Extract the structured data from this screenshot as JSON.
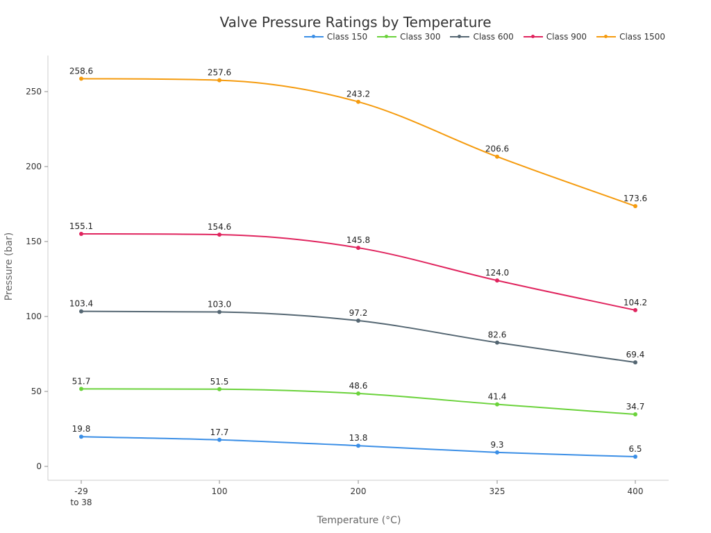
{
  "chart_data": {
    "type": "line",
    "title": "Valve Pressure Ratings by Temperature",
    "xlabel": "Temperature (°C)",
    "ylabel": "Pressure (bar)",
    "categories": [
      "-29\nto 38",
      "100",
      "200",
      "325",
      "400"
    ],
    "yticks": [
      0,
      50,
      100,
      150,
      200,
      250
    ],
    "ylim": [
      -5,
      274
    ],
    "legend_position": "top-right",
    "grid": false,
    "series": [
      {
        "name": "Class 150",
        "color": "#3a8ee6",
        "values": [
          19.8,
          17.7,
          13.8,
          9.3,
          6.5
        ],
        "labels": [
          "19.8",
          "17.7",
          "13.8",
          "9.3",
          "6.5"
        ]
      },
      {
        "name": "Class 300",
        "color": "#6ad23a",
        "values": [
          51.7,
          51.5,
          48.6,
          41.4,
          34.7
        ],
        "labels": [
          "51.7",
          "51.5",
          "48.6",
          "41.4",
          "34.7"
        ]
      },
      {
        "name": "Class 600",
        "color": "#546672",
        "values": [
          103.4,
          103.0,
          97.2,
          82.6,
          69.4
        ],
        "labels": [
          "103.4",
          "103.0",
          "97.2",
          "82.6",
          "69.4"
        ]
      },
      {
        "name": "Class 900",
        "color": "#e0245e",
        "values": [
          155.1,
          154.6,
          145.8,
          124.0,
          104.2
        ],
        "labels": [
          "155.1",
          "154.6",
          "145.8",
          "124.0",
          "104.2"
        ]
      },
      {
        "name": "Class 1500",
        "color": "#f59b0e",
        "values": [
          258.6,
          257.6,
          243.2,
          206.6,
          173.6
        ],
        "labels": [
          "258.6",
          "257.6",
          "243.2",
          "206.6",
          "173.6"
        ]
      }
    ]
  }
}
